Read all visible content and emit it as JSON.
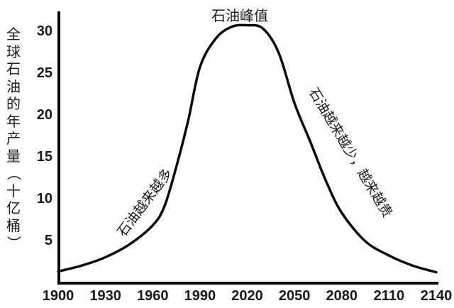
{
  "chart_data": {
    "type": "line",
    "title": "",
    "xlabel": "",
    "ylabel": "全球石油的年产量（十亿桶）",
    "x_ticks": [
      1900,
      1930,
      1960,
      1990,
      2020,
      2050,
      2080,
      2110,
      2140
    ],
    "y_ticks": [
      5,
      10,
      15,
      20,
      25,
      30
    ],
    "xlim": [
      1900,
      2140
    ],
    "ylim": [
      0,
      32
    ],
    "grid": false,
    "legend": null,
    "series": [
      {
        "name": "全球石油的年产量",
        "x": [
          1900,
          1915,
          1930,
          1945,
          1960,
          1967.5,
          1975,
          1982.5,
          1990,
          2000,
          2010,
          2020,
          2030,
          2040,
          2050,
          2060,
          2070,
          2080,
          2095,
          2110,
          2125,
          2140
        ],
        "values": [
          1.4,
          2.1,
          3.1,
          4.6,
          6.9,
          9.2,
          13.9,
          19.4,
          25.8,
          29.2,
          30.6,
          30.8,
          30.4,
          27.5,
          21.5,
          16.9,
          12.2,
          8.4,
          5.0,
          3.3,
          2.1,
          1.3
        ]
      }
    ],
    "annotations": [
      {
        "text": "石油峰值",
        "x": 2020,
        "y": 32.5
      },
      {
        "text": "石油越来越多",
        "x": 1955,
        "y": 10,
        "rotation": -52
      },
      {
        "text": "石油越来越少，越来越贵",
        "x": 2060,
        "y": 20,
        "rotation": 58
      }
    ]
  },
  "labels": {
    "ylabel_chars": [
      "全",
      "球",
      "石",
      "油",
      "的",
      "年",
      "产",
      "量",
      "（",
      "十",
      "亿",
      "桶",
      "）"
    ],
    "peak": "石油峰值",
    "rising": "石油越来越多",
    "falling": "石油越来越少，越来越贵"
  },
  "colors": {
    "line": "#0a0a0a",
    "axis": "#0a0a0a",
    "background": "#ffffff"
  }
}
